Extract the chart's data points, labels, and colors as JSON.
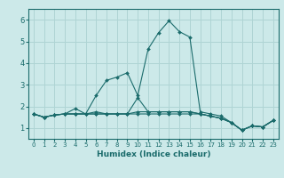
{
  "xlabel": "Humidex (Indice chaleur)",
  "bg_color": "#cce9e9",
  "grid_color": "#afd4d4",
  "line_color": "#1a6b6b",
  "xlim": [
    -0.5,
    23.5
  ],
  "ylim": [
    0.5,
    6.5
  ],
  "yticks": [
    1,
    2,
    3,
    4,
    5,
    6
  ],
  "xticks": [
    0,
    1,
    2,
    3,
    4,
    5,
    6,
    7,
    8,
    9,
    10,
    11,
    12,
    13,
    14,
    15,
    16,
    17,
    18,
    19,
    20,
    21,
    22,
    23
  ],
  "curves": [
    [
      1.65,
      1.5,
      1.6,
      1.65,
      1.65,
      1.65,
      2.5,
      3.2,
      3.35,
      3.55,
      2.5,
      4.65,
      5.4,
      5.95,
      5.45,
      5.2,
      1.75,
      1.65,
      1.55,
      1.25,
      0.9,
      1.1,
      1.05,
      1.35
    ],
    [
      1.65,
      1.5,
      1.6,
      1.65,
      1.65,
      1.65,
      1.65,
      1.65,
      1.65,
      1.65,
      1.65,
      1.65,
      1.65,
      1.65,
      1.65,
      1.65,
      1.65,
      1.55,
      1.45,
      1.25,
      0.9,
      1.1,
      1.05,
      1.35
    ],
    [
      1.65,
      1.5,
      1.6,
      1.65,
      1.65,
      1.65,
      1.65,
      1.65,
      1.65,
      1.65,
      1.75,
      1.75,
      1.75,
      1.75,
      1.75,
      1.75,
      1.65,
      1.55,
      1.45,
      1.25,
      0.9,
      1.1,
      1.05,
      1.35
    ],
    [
      1.65,
      1.5,
      1.6,
      1.65,
      1.9,
      1.65,
      1.75,
      1.65,
      1.65,
      1.65,
      2.4,
      1.75,
      1.75,
      1.75,
      1.75,
      1.75,
      1.65,
      1.55,
      1.45,
      1.25,
      0.9,
      1.1,
      1.05,
      1.35
    ]
  ]
}
